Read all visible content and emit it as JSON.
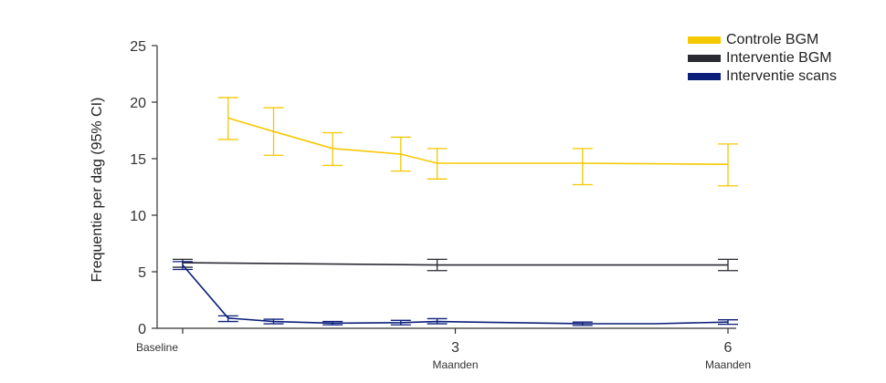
{
  "chart_data": {
    "type": "line",
    "ylabel": "Frequentie per dag (95% CI)",
    "ylim": [
      0,
      25
    ],
    "yticks": [
      0,
      5,
      10,
      15,
      20,
      25
    ],
    "xlim": [
      0,
      6
    ],
    "xticks": [
      {
        "x": 0,
        "label": "Baseline",
        "sub": ""
      },
      {
        "x": 3,
        "label": "3",
        "sub": "Maanden"
      },
      {
        "x": 6,
        "label": "6",
        "sub": "Maanden"
      }
    ],
    "legend_position": "top-right",
    "grid": false,
    "series": [
      {
        "name": "Controle BGM",
        "color": "#F5C800",
        "points": [
          {
            "x": 0.5,
            "y": 18.6,
            "lo": 16.7,
            "hi": 20.4
          },
          {
            "x": 1.0,
            "y": 17.4,
            "lo": 15.3,
            "hi": 19.5
          },
          {
            "x": 1.65,
            "y": 15.9,
            "lo": 14.4,
            "hi": 17.3
          },
          {
            "x": 2.4,
            "y": 15.4,
            "lo": 13.9,
            "hi": 16.9
          },
          {
            "x": 2.8,
            "y": 14.6,
            "lo": 13.2,
            "hi": 15.9
          },
          {
            "x": 4.4,
            "y": 14.6,
            "lo": 12.7,
            "hi": 15.9
          },
          {
            "x": 6.0,
            "y": 14.5,
            "lo": 12.6,
            "hi": 16.3
          }
        ]
      },
      {
        "name": "Interventie BGM",
        "color": "#2A2A33",
        "points": [
          {
            "x": 0.0,
            "y": 5.8,
            "lo": 5.4,
            "hi": 6.1
          },
          {
            "x": 2.8,
            "y": 5.6,
            "lo": 5.1,
            "hi": 6.1
          },
          {
            "x": 6.0,
            "y": 5.6,
            "lo": 5.1,
            "hi": 6.1
          }
        ]
      },
      {
        "name": "Interventie scans",
        "color": "#0A1E7A",
        "points": [
          {
            "x": 0.0,
            "y": 5.6,
            "lo": 5.2,
            "hi": 5.9
          },
          {
            "x": 0.5,
            "y": 0.9,
            "lo": 0.6,
            "hi": 1.1
          },
          {
            "x": 1.0,
            "y": 0.6,
            "lo": 0.4,
            "hi": 0.8
          },
          {
            "x": 1.65,
            "y": 0.45,
            "lo": 0.3,
            "hi": 0.6
          },
          {
            "x": 2.4,
            "y": 0.5,
            "lo": 0.3,
            "hi": 0.7
          },
          {
            "x": 2.8,
            "y": 0.6,
            "lo": 0.4,
            "hi": 0.85
          },
          {
            "x": 4.4,
            "y": 0.4,
            "lo": 0.25,
            "hi": 0.55
          },
          {
            "x": 5.2,
            "y": 0.4,
            "lo": 0.4,
            "hi": 0.4
          },
          {
            "x": 6.0,
            "y": 0.55,
            "lo": 0.35,
            "hi": 0.75
          }
        ]
      }
    ]
  }
}
